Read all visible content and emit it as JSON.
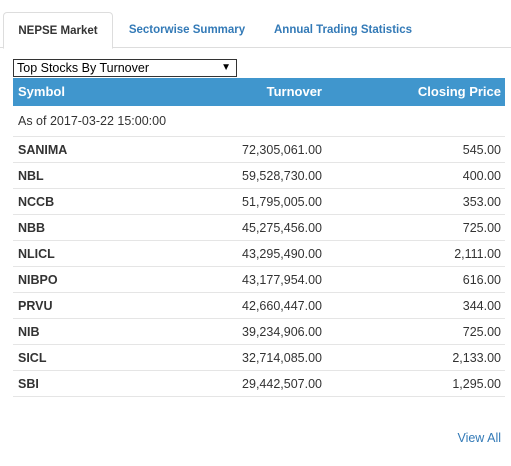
{
  "tabs": [
    {
      "label": "NEPSE Market"
    },
    {
      "label": "Sectorwise Summary"
    },
    {
      "label": "Annual Trading Statistics"
    }
  ],
  "dropdown": {
    "selected": "Top Stocks By Turnover"
  },
  "table": {
    "headers": {
      "symbol": "Symbol",
      "turnover": "Turnover",
      "closing": "Closing Price"
    },
    "as_of": "As of 2017-03-22 15:00:00",
    "rows": [
      {
        "symbol": "SANIMA",
        "turnover": "72,305,061.00",
        "closing": "545.00"
      },
      {
        "symbol": "NBL",
        "turnover": "59,528,730.00",
        "closing": "400.00"
      },
      {
        "symbol": "NCCB",
        "turnover": "51,795,005.00",
        "closing": "353.00"
      },
      {
        "symbol": "NBB",
        "turnover": "45,275,456.00",
        "closing": "725.00"
      },
      {
        "symbol": "NLICL",
        "turnover": "43,295,490.00",
        "closing": "2,111.00"
      },
      {
        "symbol": "NIBPO",
        "turnover": "43,177,954.00",
        "closing": "616.00"
      },
      {
        "symbol": "PRVU",
        "turnover": "42,660,447.00",
        "closing": "344.00"
      },
      {
        "symbol": "NIB",
        "turnover": "39,234,906.00",
        "closing": "725.00"
      },
      {
        "symbol": "SICL",
        "turnover": "32,714,085.00",
        "closing": "2,133.00"
      },
      {
        "symbol": "SBI",
        "turnover": "29,442,507.00",
        "closing": "1,295.00"
      }
    ]
  },
  "view_all": "View All",
  "colors": {
    "header_bg": "#4096cd",
    "link": "#337ab7"
  }
}
